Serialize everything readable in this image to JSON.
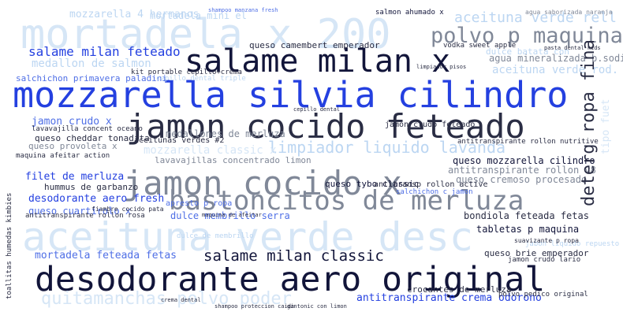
{
  "colors": {
    "navy": "#12153a",
    "dark": "#2a2d44",
    "blue": "#2440e0",
    "mid": "#4f6fe6",
    "light": "#bcd6f2",
    "pale": "#d6e6f6",
    "grey": "#808898"
  },
  "words": [
    {
      "text": "mortadela x 200",
      "color": "pale"
    },
    {
      "text": "aceituna verde desc",
      "color": "pale"
    },
    {
      "text": "mozzarella silvia cilindro",
      "color": "blue"
    },
    {
      "text": "jamon cocido feteado",
      "color": "dark"
    },
    {
      "text": "jamon cocido x",
      "color": "grey"
    },
    {
      "text": "desodorante aero original",
      "color": "navy"
    },
    {
      "text": "salame milan x",
      "color": "navy"
    },
    {
      "text": "bastoncitos de merluza",
      "color": "grey"
    },
    {
      "text": "polvo p maquina",
      "color": "grey"
    },
    {
      "text": "limpiador liquido lavanda",
      "color": "light"
    },
    {
      "text": "quitamanchas polvo poder",
      "color": "pale"
    },
    {
      "text": "salame milan classic",
      "color": "navy"
    },
    {
      "text": "deterg ropa fina",
      "color": "dark"
    },
    {
      "text": "salame milan feteado",
      "color": "blue"
    },
    {
      "text": "aceituna verde rell",
      "color": "light"
    },
    {
      "text": "mozzarella 4 hermanos",
      "color": "light"
    },
    {
      "text": "medallon de salmon",
      "color": "light"
    },
    {
      "text": "mortadela mini el",
      "color": "light"
    },
    {
      "text": "queso camembert emperador",
      "color": "dark"
    },
    {
      "text": "salchichon primavera paladini",
      "color": "mid"
    },
    {
      "text": "jamon crudo x",
      "color": "mid"
    },
    {
      "text": "medallones de merluza",
      "color": "grey"
    },
    {
      "text": "queso cheddar tonadita",
      "color": "dark"
    },
    {
      "text": "queso provoleta x",
      "color": "grey"
    },
    {
      "text": "mozzarella classic x",
      "color": "pale"
    },
    {
      "text": "aceitunas verdes #2",
      "color": "dark"
    },
    {
      "text": "lavavajillas concentrado limon",
      "color": "grey"
    },
    {
      "text": "filet de merluza",
      "color": "blue"
    },
    {
      "text": "hummus de garbanzo",
      "color": "dark"
    },
    {
      "text": "desodorante aero fresh",
      "color": "blue"
    },
    {
      "text": "queso cuartirolo x",
      "color": "mid"
    },
    {
      "text": "mortadela feteada fetas",
      "color": "mid"
    },
    {
      "text": "antitranspirante crema odorono",
      "color": "blue"
    },
    {
      "text": "crocantes de merluza",
      "color": "dark"
    },
    {
      "text": "dulce membrillo serra",
      "color": "mid"
    },
    {
      "text": "bondiola feteada fetas",
      "color": "dark"
    },
    {
      "text": "tabletas p maquina",
      "color": "navy"
    },
    {
      "text": "queso mozzarella cilindro",
      "color": "navy"
    },
    {
      "text": "queso tybo classic",
      "color": "navy"
    },
    {
      "text": "antitranspirante rollon v8",
      "color": "grey"
    },
    {
      "text": "queso cremoso procesado",
      "color": "grey"
    },
    {
      "text": "queso brie emperador",
      "color": "dark"
    },
    {
      "text": "agua mineralizada b.sodio",
      "color": "grey"
    },
    {
      "text": "aceituna verde rod.",
      "color": "light"
    },
    {
      "text": "tipo fuet",
      "color": "pale"
    },
    {
      "text": "jamon crudo feteado",
      "color": "dark"
    },
    {
      "text": "salmon ahumado x",
      "color": "navy"
    },
    {
      "text": "antitransp rollon active",
      "color": "dark"
    },
    {
      "text": "maquina afeitar action",
      "color": "dark"
    },
    {
      "text": "apresto p ropa",
      "color": "mid"
    },
    {
      "text": "vodka sweet apple",
      "color": "dark"
    },
    {
      "text": "kit portable cepillo+crema",
      "color": "dark"
    },
    {
      "text": "dulce batata con",
      "color": "light"
    },
    {
      "text": "antitranspirante rollon nutritive",
      "color": "dark"
    },
    {
      "text": "cepillo dental triple",
      "color": "light"
    },
    {
      "text": "polvo pedico original",
      "color": "dark"
    },
    {
      "text": "jamon crudo lario",
      "color": "dark"
    },
    {
      "text": "salchichon c jamon",
      "color": "mid"
    },
    {
      "text": "jabon liquido repuesto",
      "color": "light"
    },
    {
      "text": "shampoo manzana fresh",
      "color": "mid"
    },
    {
      "text": "agua saborizada naranja",
      "color": "grey"
    },
    {
      "text": "lavavajilla concent oceano",
      "color": "dark"
    },
    {
      "text": "fiambre cocido pata",
      "color": "dark"
    },
    {
      "text": "antitranspirante rollon rosa",
      "color": "dark"
    },
    {
      "text": "toallitas humedas kimbies",
      "color": "dark"
    },
    {
      "text": "dulce de membrillo",
      "color": "light"
    },
    {
      "text": "gintonic con limon",
      "color": "dark"
    },
    {
      "text": "suavizante p ropa",
      "color": "dark"
    },
    {
      "text": "limpiador pisos",
      "color": "dark"
    },
    {
      "text": "shampoo proteccion caida",
      "color": "dark"
    },
    {
      "text": "maquina de afeitar",
      "color": "dark"
    },
    {
      "text": "crema dental",
      "color": "dark"
    },
    {
      "text": "pasta dental kids",
      "color": "dark"
    },
    {
      "text": "cepillo dental",
      "color": "dark"
    }
  ]
}
